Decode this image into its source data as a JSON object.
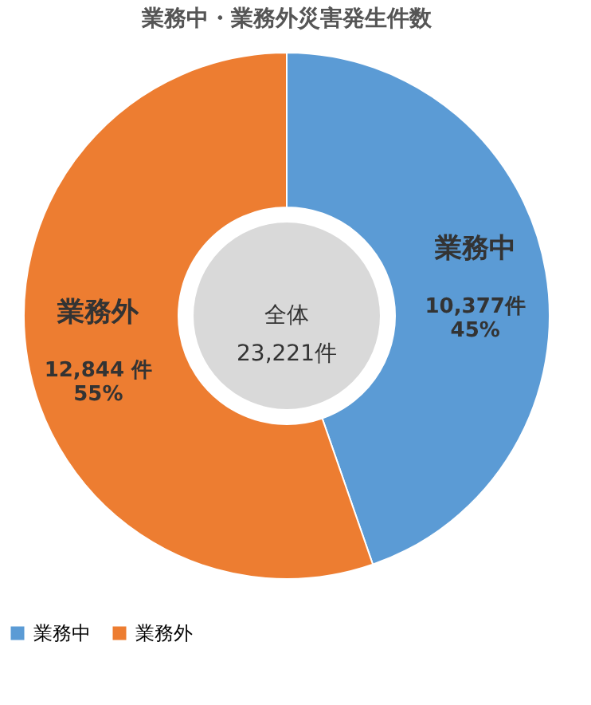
{
  "chart_data": {
    "type": "donut",
    "title": "業務中・業務外災害発生件数",
    "categories": [
      "業務中",
      "業務外"
    ],
    "values": [
      10377,
      12844
    ],
    "colors": [
      "#5b9bd5",
      "#ed7d31"
    ],
    "value_labels": [
      "10,377件\n45%",
      "12,844 件\n55%"
    ],
    "annotations": [
      "全体\n23,221件"
    ],
    "legend": "bottom"
  }
}
